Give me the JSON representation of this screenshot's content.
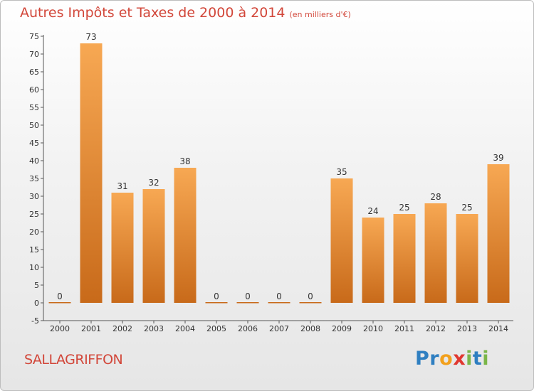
{
  "title": "Autres Impôts et Taxes de 2000 à 2014",
  "unit": "(en milliers d'€)",
  "commune": "SALLAGRIFFON",
  "logo": {
    "text": "Proxiti",
    "letters": [
      {
        "ch": "P",
        "color": "#2f7fc1"
      },
      {
        "ch": "r",
        "color": "#2f7fc1"
      },
      {
        "ch": "o",
        "color": "#f2a01c"
      },
      {
        "ch": "x",
        "color": "#e0372f"
      },
      {
        "ch": "i",
        "color": "#7ab648"
      },
      {
        "ch": "t",
        "color": "#2f7fc1"
      },
      {
        "ch": "i",
        "color": "#7ab648"
      }
    ]
  },
  "chart_data": {
    "type": "bar",
    "categories": [
      "2000",
      "2001",
      "2002",
      "2003",
      "2004",
      "2005",
      "2006",
      "2007",
      "2008",
      "2009",
      "2010",
      "2011",
      "2012",
      "2013",
      "2014"
    ],
    "values": [
      0,
      73,
      31,
      32,
      38,
      0,
      0,
      0,
      0,
      35,
      24,
      25,
      28,
      25,
      39
    ],
    "ylim": [
      -5,
      75
    ],
    "yticks": [
      -5,
      0,
      5,
      10,
      15,
      20,
      25,
      30,
      35,
      40,
      45,
      50,
      55,
      60,
      65,
      70,
      75
    ],
    "grid": false,
    "bar_color_light": "#f7a853",
    "bar_color_dark": "#c86a1a"
  }
}
